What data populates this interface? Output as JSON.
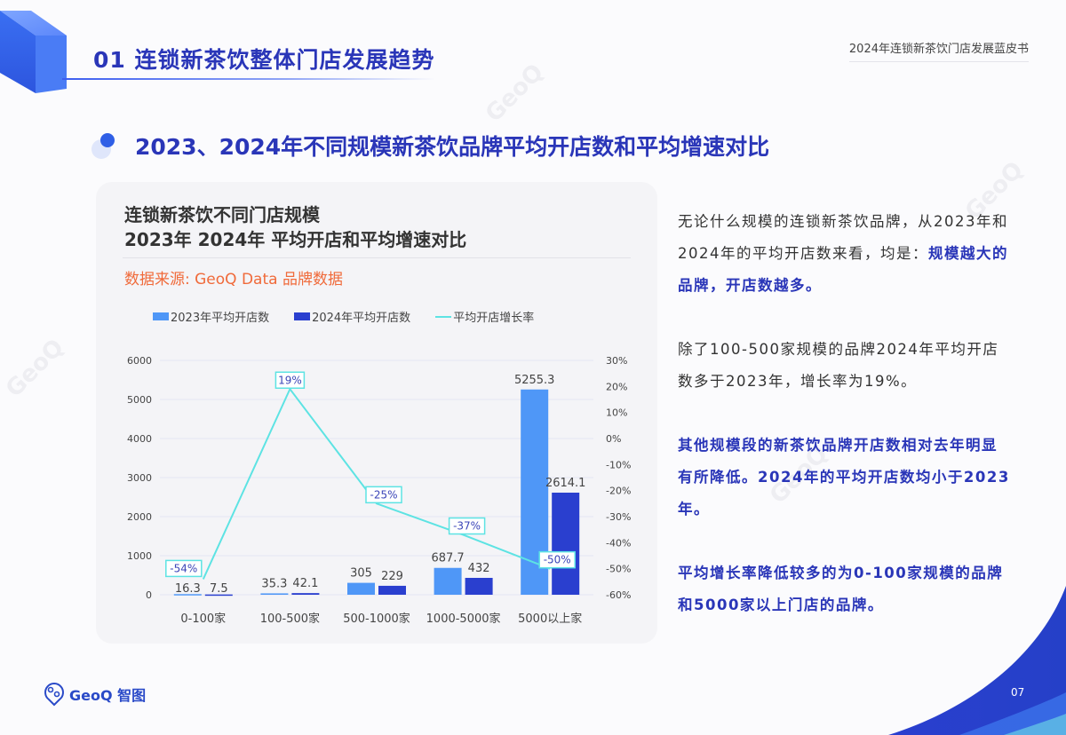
{
  "header": {
    "section_title": "01 连锁新茶饮整体门店发展趋势",
    "document_title": "2024年连锁新茶饮门店发展蓝皮书"
  },
  "subheading": "2023、2024年不同规模新茶饮品牌平均开店数和平均增速对比",
  "card": {
    "title_line1": "连锁新茶饮不同门店规模",
    "title_line2": "2023年 2024年 平均开店和平均增速对比",
    "source": "数据来源: GeoQ Data 品牌数据"
  },
  "legend": {
    "series_2023": "2023年平均开店数",
    "series_2024": "2024年平均开店数",
    "growth_rate": "平均开店增长率"
  },
  "colors": {
    "bar_2023": "#4f97f7",
    "bar_2024": "#2a3fcf",
    "growth_line": "#5de3e3",
    "title_blue": "#2a36b8",
    "source_orange": "#f06a3a"
  },
  "chart_data": {
    "type": "bar",
    "title": "连锁新茶饮不同门店规模 2023年 2024年 平均开店和平均增速对比",
    "categories": [
      "0-100家",
      "100-500家",
      "500-1000家",
      "1000-5000家",
      "5000以上家"
    ],
    "series": [
      {
        "name": "2023年平均开店数",
        "type": "bar",
        "axis": "left",
        "values": [
          16.3,
          35.3,
          305,
          687.7,
          5255.3
        ]
      },
      {
        "name": "2024年平均开店数",
        "type": "bar",
        "axis": "left",
        "values": [
          7.5,
          42.1,
          229,
          432,
          2614.1
        ]
      },
      {
        "name": "平均开店增长率",
        "type": "line",
        "axis": "right",
        "values": [
          -54,
          19,
          -25,
          -37,
          -50
        ],
        "labels": [
          "-54%",
          "19%",
          "-25%",
          "-37%",
          "-50%"
        ]
      }
    ],
    "left_axis": {
      "ticks": [
        "0",
        "1000",
        "2000",
        "3000",
        "4000",
        "5000",
        "6000"
      ],
      "ylim": [
        0,
        6000
      ]
    },
    "right_axis": {
      "ticks": [
        "30%",
        "20%",
        "10%",
        "0%",
        "-10%",
        "-20%",
        "-30%",
        "-40%",
        "-50%",
        "-60%"
      ],
      "ylim": [
        -60,
        30
      ]
    },
    "bar_labels_2023": [
      "16.3",
      "35.3",
      "305",
      "687.7",
      "5255.3"
    ],
    "bar_labels_2024": [
      "7.5",
      "42.1",
      "229",
      "432",
      "2614.1"
    ],
    "grid": true,
    "legend_position": "top"
  },
  "insights": {
    "p1_normal": "无论什么规模的连锁新茶饮品牌，从2023年和2024年的平均开店数来看，均是：",
    "p1_highlight": "规模越大的品牌，开店数越多。",
    "p2": "除了100-500家规模的品牌2024年平均开店数多于2023年，增长率为19%。",
    "p3": "其他规模段的新茶饮品牌开店数相对去年明显有所降低。2024年的平均开店数均小于2023年。",
    "p4": "平均增长率降低较多的为0-100家规模的品牌和5000家以上门店的品牌。"
  },
  "footer": {
    "logo_text": "GeoQ 智图",
    "page_number": "07"
  }
}
